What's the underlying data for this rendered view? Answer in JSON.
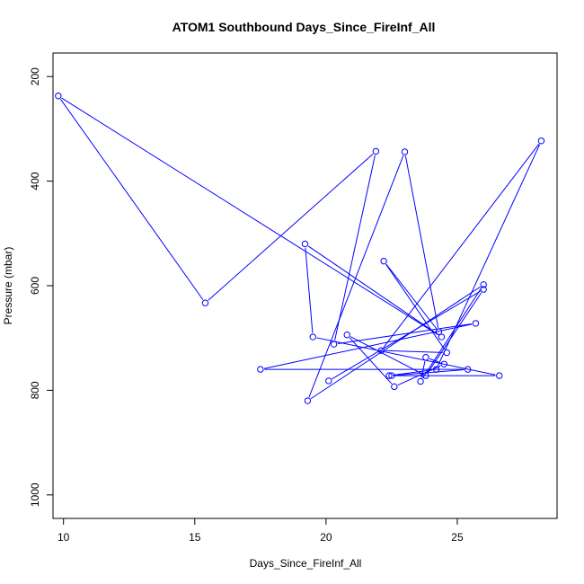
{
  "chart_data": {
    "type": "line",
    "title": "ATOM1 Southbound Days_Since_FireInf_All",
    "xlabel": "Days_Since_FireInf_All",
    "ylabel": "Pressure (mbar)",
    "xlim": [
      9.6,
      28.8
    ],
    "ylim": [
      1045,
      155
    ],
    "y_reversed": true,
    "grid": false,
    "x_ticks": [
      "10",
      "15",
      "20",
      "25"
    ],
    "y_ticks": [
      "200",
      "400",
      "600",
      "800",
      "1000"
    ],
    "series": [
      {
        "marker": "open-circle",
        "color": "#0000ff",
        "points": [
          [
            22.5,
            772
          ],
          [
            25.4,
            760
          ],
          [
            17.5,
            760
          ],
          [
            25.7,
            672
          ],
          [
            20.3,
            712
          ],
          [
            21.9,
            343
          ],
          [
            15.4,
            633
          ],
          [
            9.8,
            237
          ],
          [
            24.4,
            698
          ],
          [
            19.2,
            520
          ],
          [
            19.5,
            698
          ],
          [
            26.6,
            772
          ],
          [
            22.4,
            772
          ],
          [
            24.2,
            760
          ],
          [
            28.2,
            323
          ],
          [
            22.1,
            724
          ],
          [
            24.6,
            728
          ],
          [
            22.2,
            553
          ],
          [
            24.3,
            688
          ],
          [
            23.0,
            344
          ],
          [
            19.3,
            820
          ],
          [
            26.0,
            598
          ],
          [
            23.6,
            783
          ],
          [
            23.8,
            737
          ],
          [
            24.5,
            750
          ],
          [
            22.6,
            793
          ],
          [
            20.8,
            694
          ],
          [
            23.8,
            772
          ],
          [
            26.0,
            607
          ],
          [
            20.1,
            782
          ]
        ]
      }
    ]
  }
}
